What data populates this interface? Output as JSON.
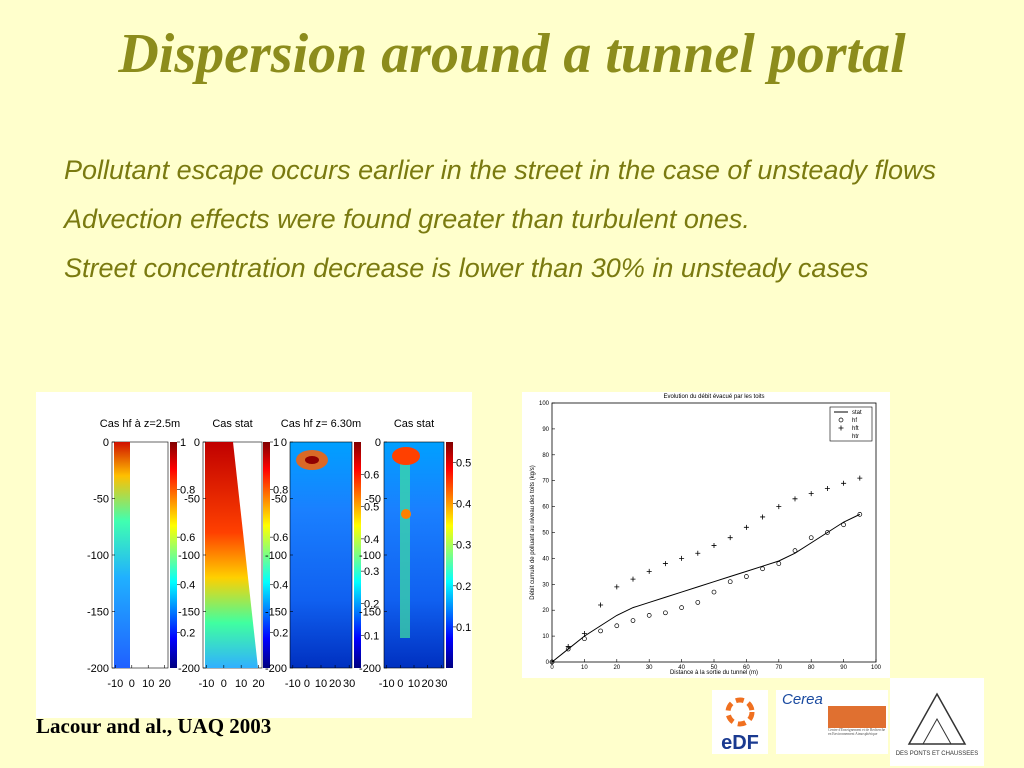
{
  "title": "Dispersion around a tunnel portal",
  "bullets": [
    "Pollutant escape occurs earlier in the street in the case of unsteady flows",
    "Advection effects were found greater than turbulent ones.",
    "Street concentration decrease is lower than 30% in unsteady cases"
  ],
  "citation": "Lacour and al., UAQ 2003",
  "left_figure": {
    "ylim": [
      -200,
      0
    ],
    "yticks": [
      0,
      -50,
      -100,
      -150,
      -200
    ],
    "panels": [
      {
        "title": "Cas hf à z=2.5m",
        "xlim": [
          -12,
          22
        ],
        "xticks": [
          -10,
          0,
          10,
          20
        ],
        "cbar_lim": [
          0.05,
          1
        ],
        "cbar_ticks": [
          1,
          0.8,
          0.6,
          0.4,
          0.2
        ]
      },
      {
        "title": "Cas stat",
        "xlim": [
          -12,
          22
        ],
        "xticks": [
          -10,
          0,
          10,
          20
        ],
        "cbar_lim": [
          0.05,
          1
        ],
        "cbar_ticks": [
          1,
          0.8,
          0.6,
          0.4,
          0.2
        ]
      },
      {
        "title": "Cas hf  z= 6.30m",
        "xlim": [
          -12,
          32
        ],
        "xticks": [
          -10,
          0,
          10,
          20,
          30
        ],
        "cbar_lim": [
          0,
          0.7
        ],
        "cbar_ticks": [
          0.6,
          0.5,
          0.4,
          0.3,
          0.2,
          0.1
        ]
      },
      {
        "title": "Cas stat",
        "xlim": [
          -12,
          32
        ],
        "xticks": [
          -10,
          0,
          10,
          20,
          30
        ],
        "cbar_lim": [
          0,
          0.55
        ],
        "cbar_ticks": [
          0.5,
          0.4,
          0.3,
          0.2,
          0.1
        ]
      }
    ]
  },
  "chart_data": {
    "type": "line",
    "title": "Evolution du débit évacué par les toits",
    "xlabel": "Distance à la sortie du tunnel (m)",
    "ylabel": "Débit cumulé de polluant au niveau des toits (kg/s)",
    "x": [
      0,
      5,
      10,
      15,
      20,
      25,
      30,
      35,
      40,
      45,
      50,
      55,
      60,
      65,
      70,
      75,
      80,
      85,
      90,
      95
    ],
    "xlim": [
      0,
      100
    ],
    "xticks": [
      0,
      10,
      20,
      30,
      40,
      50,
      60,
      70,
      80,
      90,
      100
    ],
    "ylim": [
      0,
      100
    ],
    "yticks": [
      0,
      10,
      20,
      30,
      40,
      50,
      60,
      70,
      80,
      90,
      100
    ],
    "series": [
      {
        "name": "stat",
        "marker": "line",
        "color": "#000000",
        "values": [
          0,
          5,
          10,
          14,
          18,
          21,
          23,
          25,
          27,
          29,
          31,
          33,
          35,
          37,
          39,
          42,
          46,
          50,
          54,
          57
        ]
      },
      {
        "name": "hf",
        "marker": "circle",
        "color": "#000000",
        "values": [
          0,
          5,
          9,
          12,
          14,
          16,
          18,
          19,
          21,
          23,
          27,
          31,
          33,
          36,
          38,
          43,
          48,
          50,
          53,
          57
        ]
      },
      {
        "name": "hft",
        "marker": "plus",
        "color": "#000000",
        "values": [
          0,
          6,
          11,
          22,
          29,
          32,
          35,
          38,
          40,
          42,
          45,
          48,
          52,
          56,
          60,
          63,
          65,
          67,
          69,
          71
        ]
      },
      {
        "name": "htr",
        "marker": "none",
        "color": "#000000",
        "values": [
          null,
          null,
          null,
          null,
          null,
          null,
          null,
          null,
          null,
          null,
          null,
          null,
          null,
          null,
          null,
          null,
          null,
          null,
          null,
          null
        ]
      }
    ]
  },
  "logos": {
    "edf": "eDF",
    "cerea": "Cerea",
    "cerea_sub": "Centre d'Enseignement et de Recherche en Environnement Atmosphérique",
    "ponts": "DES PONTS ET CHAUSSEES"
  }
}
